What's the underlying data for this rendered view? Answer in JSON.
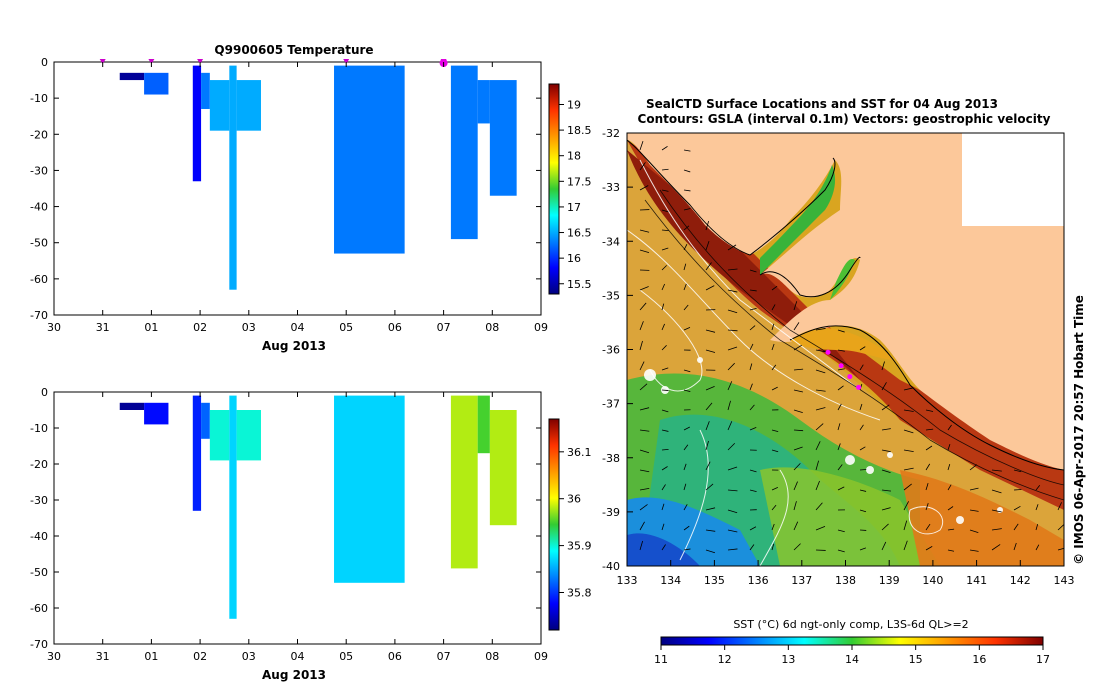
{
  "chart_data": [
    {
      "type": "heatmap",
      "title": "Q9900605  Temperature",
      "xlabel": "Aug 2013",
      "ylabel": "",
      "xticks": [
        "30",
        "31",
        "01",
        "02",
        "03",
        "04",
        "05",
        "06",
        "07",
        "08",
        "09"
      ],
      "yticks": [
        "0",
        "-10",
        "-20",
        "-30",
        "-40",
        "-50",
        "-60",
        "-70"
      ],
      "ylim": [
        -70,
        0
      ],
      "colorbar": {
        "colormap": "jet",
        "ticks": [
          "19",
          "18.5",
          "18",
          "17.5",
          "17",
          "16.5",
          "16",
          "15.5"
        ],
        "range": [
          15.3,
          19.4
        ]
      },
      "profile_markers": [
        1.0,
        2.0,
        3.0,
        6.0,
        8.0
      ],
      "highlight_marker": 8.0,
      "cells": [
        {
          "t0": 1.35,
          "t1": 1.85,
          "d0": 3,
          "d1": 5,
          "value": 15.4
        },
        {
          "t0": 1.85,
          "t1": 2.35,
          "d0": 3,
          "d1": 9,
          "value": 16.2
        },
        {
          "t0": 2.85,
          "t1": 3.02,
          "d0": 1,
          "d1": 33,
          "value": 15.8
        },
        {
          "t0": 3.02,
          "t1": 3.2,
          "d0": 3,
          "d1": 13,
          "value": 16.3
        },
        {
          "t0": 3.2,
          "t1": 3.6,
          "d0": 5,
          "d1": 19,
          "value": 16.5
        },
        {
          "t0": 3.6,
          "t1": 3.75,
          "d0": 1,
          "d1": 63,
          "value": 16.5
        },
        {
          "t0": 3.75,
          "t1": 4.25,
          "d0": 5,
          "d1": 19,
          "value": 16.5
        },
        {
          "t0": 5.75,
          "t1": 7.2,
          "d0": 1,
          "d1": 53,
          "value": 16.3
        },
        {
          "t0": 8.15,
          "t1": 8.7,
          "d0": 1,
          "d1": 49,
          "value": 16.3
        },
        {
          "t0": 8.7,
          "t1": 8.95,
          "d0": 5,
          "d1": 17,
          "value": 16.3
        },
        {
          "t0": 8.95,
          "t1": 9.5,
          "d0": 5,
          "d1": 37,
          "value": 16.3
        }
      ]
    },
    {
      "type": "heatmap",
      "title": "",
      "xlabel": "Aug 2013",
      "ylabel": "",
      "xticks": [
        "30",
        "31",
        "01",
        "02",
        "03",
        "04",
        "05",
        "06",
        "07",
        "08",
        "09"
      ],
      "yticks": [
        "0",
        "-10",
        "-20",
        "-30",
        "-40",
        "-50",
        "-60",
        "-70"
      ],
      "ylim": [
        -70,
        0
      ],
      "colorbar": {
        "colormap": "jet",
        "ticks": [
          "36.1",
          "36",
          "35.9",
          "35.8"
        ],
        "range": [
          35.72,
          36.17
        ]
      },
      "cells": [
        {
          "t0": 1.35,
          "t1": 1.85,
          "d0": 3,
          "d1": 5,
          "value": 35.73
        },
        {
          "t0": 1.85,
          "t1": 2.35,
          "d0": 3,
          "d1": 9,
          "value": 35.78
        },
        {
          "t0": 2.85,
          "t1": 3.02,
          "d0": 1,
          "d1": 33,
          "value": 35.79
        },
        {
          "t0": 3.02,
          "t1": 3.2,
          "d0": 3,
          "d1": 13,
          "value": 35.82
        },
        {
          "t0": 3.2,
          "t1": 3.6,
          "d0": 5,
          "d1": 19,
          "value": 35.9
        },
        {
          "t0": 3.6,
          "t1": 3.75,
          "d0": 1,
          "d1": 63,
          "value": 35.87
        },
        {
          "t0": 3.75,
          "t1": 4.25,
          "d0": 5,
          "d1": 19,
          "value": 35.9
        },
        {
          "t0": 5.75,
          "t1": 7.2,
          "d0": 1,
          "d1": 53,
          "value": 35.87
        },
        {
          "t0": 8.15,
          "t1": 8.7,
          "d0": 1,
          "d1": 49,
          "value": 35.98
        },
        {
          "t0": 8.7,
          "t1": 8.95,
          "d0": 1,
          "d1": 17,
          "value": 35.95
        },
        {
          "t0": 8.95,
          "t1": 9.5,
          "d0": 5,
          "d1": 37,
          "value": 35.98
        }
      ]
    },
    {
      "type": "heatmap",
      "title": "SealCTD Surface Locations and SST for 04 Aug 2013",
      "subtitle": "Contours: GSLA (interval 0.1m) Vectors: geostrophic velocity",
      "xticks": [
        "133",
        "134",
        "135",
        "136",
        "137",
        "138",
        "139",
        "140",
        "141",
        "142",
        "143"
      ],
      "yticks": [
        "-32",
        "-33",
        "-34",
        "-35",
        "-36",
        "-37",
        "-38",
        "-39",
        "-40"
      ],
      "xlim": [
        133,
        143
      ],
      "ylim": [
        -40,
        -32
      ],
      "colorbar": {
        "label": "SST (°C) 6d ngt-only comp, L3S-6d QL>=2",
        "ticks": [
          "11",
          "12",
          "13",
          "14",
          "15",
          "16",
          "17"
        ],
        "range": [
          11,
          17
        ]
      },
      "surface_locations": [
        {
          "lon": 137.6,
          "lat": -36.05
        },
        {
          "lon": 137.9,
          "lat": -36.3
        },
        {
          "lon": 138.1,
          "lat": -36.5
        },
        {
          "lon": 138.3,
          "lat": -36.7
        }
      ],
      "side_label": "© IMOS 06-Apr-2017 20:57 Hobart Time"
    }
  ]
}
